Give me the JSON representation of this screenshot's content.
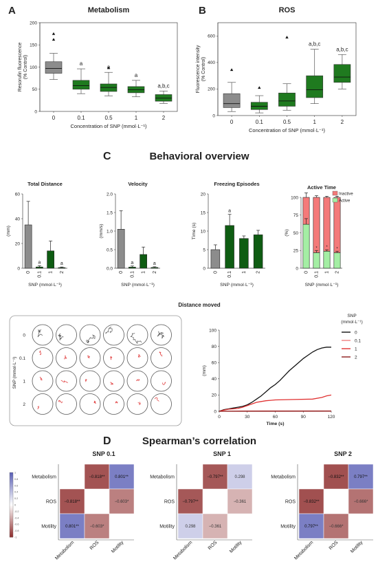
{
  "panels": {
    "A": {
      "letter": "A",
      "title": "Metabolism",
      "ylabel": "Resorufin fluorescence",
      "ylabel2": "(% Control)",
      "xlabel": "Concentration of SNP (mmol·L⁻¹)"
    },
    "B": {
      "letter": "B",
      "title": "ROS",
      "ylabel": "Fluorescence intensity",
      "ylabel2": "(% Control)",
      "xlabel": "Concentration of SNP (mmol·L⁻¹)"
    },
    "C": {
      "letter": "C",
      "title": "Behavioral overview",
      "distance_title": "Distance moved",
      "legend_title": "SNP",
      "legend_unit": "(mmol·L⁻¹)"
    },
    "D": {
      "letter": "D",
      "title": "Spearman’s correlation"
    }
  },
  "colors": {
    "control": "#8c8c8c",
    "treated": "#1f7a1f",
    "treated_dark": "#0e5c12",
    "inactive": "#f47a7a",
    "active": "#a4eea4",
    "heat_neg": "#8e2d2d",
    "heat_pos": "#5a5fb5"
  },
  "chart_data": [
    {
      "id": "metabolism",
      "type": "box",
      "title": "Metabolism",
      "xlabel": "Concentration of SNP (mmol·L⁻¹)",
      "ylabel": "Resorufin fluorescence (% Control)",
      "ylim": [
        0,
        200
      ],
      "yticks": [
        0,
        50,
        100,
        150,
        200
      ],
      "categories": [
        "0",
        "0.1",
        "0.5",
        "1",
        "2"
      ],
      "boxes": [
        {
          "min": 72,
          "q1": 86,
          "median": 97,
          "q3": 112,
          "max": 131,
          "outliers": [
            175,
            162
          ],
          "label": ""
        },
        {
          "min": 40,
          "q1": 50,
          "median": 58,
          "q3": 70,
          "max": 96,
          "outliers": [],
          "label": "a"
        },
        {
          "min": 35,
          "q1": 45,
          "median": 54,
          "q3": 62,
          "max": 88,
          "outliers": [
            98
          ],
          "label": "a"
        },
        {
          "min": 33,
          "q1": 42,
          "median": 49,
          "q3": 56,
          "max": 70,
          "outliers": [],
          "label": "a"
        },
        {
          "min": 18,
          "q1": 23,
          "median": 30,
          "q3": 38,
          "max": 46,
          "outliers": [],
          "label": "a,b,c"
        }
      ]
    },
    {
      "id": "ros",
      "type": "box",
      "title": "ROS",
      "xlabel": "Concentration of SNP (mmol·L⁻¹)",
      "ylabel": "Fluorescence intensity (% Control)",
      "ylim": [
        0,
        700
      ],
      "yticks": [
        0,
        200,
        400,
        600
      ],
      "categories": [
        "0",
        "0.1",
        "0.5",
        "1",
        "2"
      ],
      "boxes": [
        {
          "min": 30,
          "q1": 60,
          "median": 90,
          "q3": 165,
          "max": 250,
          "outliers": [
            345
          ],
          "label": ""
        },
        {
          "min": 20,
          "q1": 45,
          "median": 70,
          "q3": 100,
          "max": 150,
          "outliers": [
            210
          ],
          "label": ""
        },
        {
          "min": 40,
          "q1": 70,
          "median": 110,
          "q3": 170,
          "max": 240,
          "outliers": [
            590
          ],
          "label": ""
        },
        {
          "min": 90,
          "q1": 135,
          "median": 195,
          "q3": 300,
          "max": 500,
          "outliers": [],
          "label": "a,b,c"
        },
        {
          "min": 200,
          "q1": 250,
          "median": 290,
          "q3": 385,
          "max": 460,
          "outliers": [],
          "label": "a,b,c"
        }
      ]
    },
    {
      "id": "total_distance",
      "type": "bar",
      "title": "Total Distance",
      "xlabel": "SNP (mmol·L⁻¹)",
      "ylabel": "(mm)",
      "ylim": [
        0,
        60
      ],
      "yticks": [
        0,
        20,
        40,
        60
      ],
      "categories": [
        "0",
        "0.1",
        "1",
        "2"
      ],
      "values": [
        35,
        1,
        14,
        0.5
      ],
      "errors": [
        19,
        1,
        8,
        0.5
      ],
      "labels": [
        "",
        "a",
        "",
        "a"
      ]
    },
    {
      "id": "velocity",
      "type": "bar",
      "title": "Velocity",
      "xlabel": "SNP (mmol·L⁻¹)",
      "ylabel": "(mm/s)",
      "ylim": [
        0,
        2.0
      ],
      "yticks": [
        0.0,
        0.5,
        1.0,
        1.5,
        2.0
      ],
      "categories": [
        "0",
        "0.1",
        "1",
        "2"
      ],
      "values": [
        1.05,
        0.03,
        0.37,
        0.02
      ],
      "errors": [
        0.5,
        0.03,
        0.2,
        0.02
      ],
      "labels": [
        "",
        "a",
        "",
        "a"
      ]
    },
    {
      "id": "freezing",
      "type": "bar",
      "title": "Freezing Episodes",
      "xlabel": "SNP (mmol·L⁻¹)",
      "ylabel": "Time (s)",
      "ylim": [
        0,
        20
      ],
      "yticks": [
        0,
        5,
        10,
        15,
        20
      ],
      "categories": [
        "0",
        "0.1",
        "1",
        "2"
      ],
      "values": [
        5,
        11.5,
        8,
        9
      ],
      "errors": [
        1.3,
        3,
        0.7,
        1.2
      ],
      "labels": [
        "",
        "a",
        "",
        ""
      ]
    },
    {
      "id": "active_time",
      "type": "stacked_bar",
      "title": "Active Time",
      "xlabel": "SNP (mmol·L⁻¹)",
      "ylabel": "(%)",
      "ylim": [
        0,
        100
      ],
      "yticks": [
        0,
        25,
        50,
        75,
        100
      ],
      "categories": [
        "0",
        "0.1",
        "1",
        "2"
      ],
      "series": [
        {
          "name": "Active",
          "values": [
            62,
            22,
            24,
            22
          ]
        },
        {
          "name": "Inactive",
          "values": [
            38,
            78,
            76,
            78
          ]
        }
      ],
      "errors": [
        8,
        3,
        2,
        2
      ],
      "labels": [
        "",
        "*",
        "*",
        "*"
      ]
    },
    {
      "id": "distance_moved",
      "type": "line",
      "title": "Distance moved",
      "xlabel": "Time (s)",
      "ylabel": "(mm)",
      "xlim": [
        0,
        120
      ],
      "ylim": [
        0,
        100
      ],
      "xticks": [
        0,
        30,
        60,
        90,
        120
      ],
      "yticks": [
        0,
        20,
        40,
        60,
        80,
        100
      ],
      "series": [
        {
          "name": "0",
          "color": "#111111",
          "x": [
            0,
            5,
            10,
            15,
            20,
            25,
            30,
            35,
            40,
            45,
            50,
            55,
            60,
            65,
            70,
            75,
            80,
            85,
            90,
            95,
            100,
            105,
            110,
            115,
            120
          ],
          "y": [
            0,
            2,
            3,
            4,
            5,
            6,
            8,
            11,
            15,
            19,
            24,
            29,
            33,
            38,
            44,
            50,
            55,
            60,
            65,
            69,
            73,
            76,
            78,
            79,
            79
          ]
        },
        {
          "name": "0.1",
          "color": "#f08080",
          "x": [
            0,
            20,
            120
          ],
          "y": [
            0,
            0.3,
            0.4
          ]
        },
        {
          "name": "1",
          "color": "#e03030",
          "x": [
            0,
            5,
            10,
            15,
            20,
            25,
            30,
            35,
            40,
            45,
            50,
            55,
            60,
            80,
            100,
            110,
            115,
            120
          ],
          "y": [
            0,
            1.5,
            2.5,
            3,
            3.5,
            5,
            7,
            9,
            11,
            12,
            13,
            13.5,
            14,
            14.5,
            15,
            17,
            19,
            20
          ]
        },
        {
          "name": "2",
          "color": "#8b1a1a",
          "x": [
            0,
            120
          ],
          "y": [
            0,
            0.2
          ]
        }
      ]
    },
    {
      "id": "spearman_snp01",
      "type": "heatmap",
      "title": "SNP 0.1",
      "labels": [
        "Metabolism",
        "ROS",
        "Motility"
      ],
      "matrix": [
        [
          null,
          -0.818,
          0.801
        ],
        [
          -0.818,
          null,
          -0.603
        ],
        [
          0.801,
          -0.603,
          null
        ]
      ],
      "text": [
        [
          "",
          "−0.818**",
          "0.801**"
        ],
        [
          "−0.818**",
          "",
          "−0.603*"
        ],
        [
          "0.801**",
          "−0.603*",
          ""
        ]
      ]
    },
    {
      "id": "spearman_snp1",
      "type": "heatmap",
      "title": "SNP 1",
      "labels": [
        "Metabolism",
        "ROS",
        "Motility"
      ],
      "matrix": [
        [
          null,
          -0.797,
          0.298
        ],
        [
          -0.797,
          null,
          -0.361
        ],
        [
          0.298,
          -0.361,
          null
        ]
      ],
      "text": [
        [
          "",
          "−0.797**",
          "0.298"
        ],
        [
          "−0.797**",
          "",
          "−0.361"
        ],
        [
          "0.298",
          "−0.361",
          ""
        ]
      ]
    },
    {
      "id": "spearman_snp2",
      "type": "heatmap",
      "title": "SNP 2",
      "labels": [
        "Metabolism",
        "ROS",
        "Motility"
      ],
      "matrix": [
        [
          null,
          -0.832,
          0.797
        ],
        [
          -0.832,
          null,
          -0.666
        ],
        [
          0.797,
          -0.666,
          null
        ]
      ],
      "text": [
        [
          "",
          "−0.832**",
          "0.797**"
        ],
        [
          "−0.832**",
          "",
          "−0.666*"
        ],
        [
          "0.797**",
          "−0.666*",
          ""
        ]
      ]
    }
  ],
  "colorbar": {
    "ticks": [
      "1",
      "0.8",
      "0.6",
      "0.4",
      "0.2",
      "0",
      "-0.2",
      "-0.4",
      "-0.6",
      "-0.8",
      "-1"
    ]
  },
  "tracks": {
    "row_labels": [
      "0",
      "0.1",
      "1",
      "2"
    ],
    "ylabel": "SNP (mmol·L⁻¹)"
  },
  "active_legend": [
    "Inactive",
    "Active"
  ]
}
